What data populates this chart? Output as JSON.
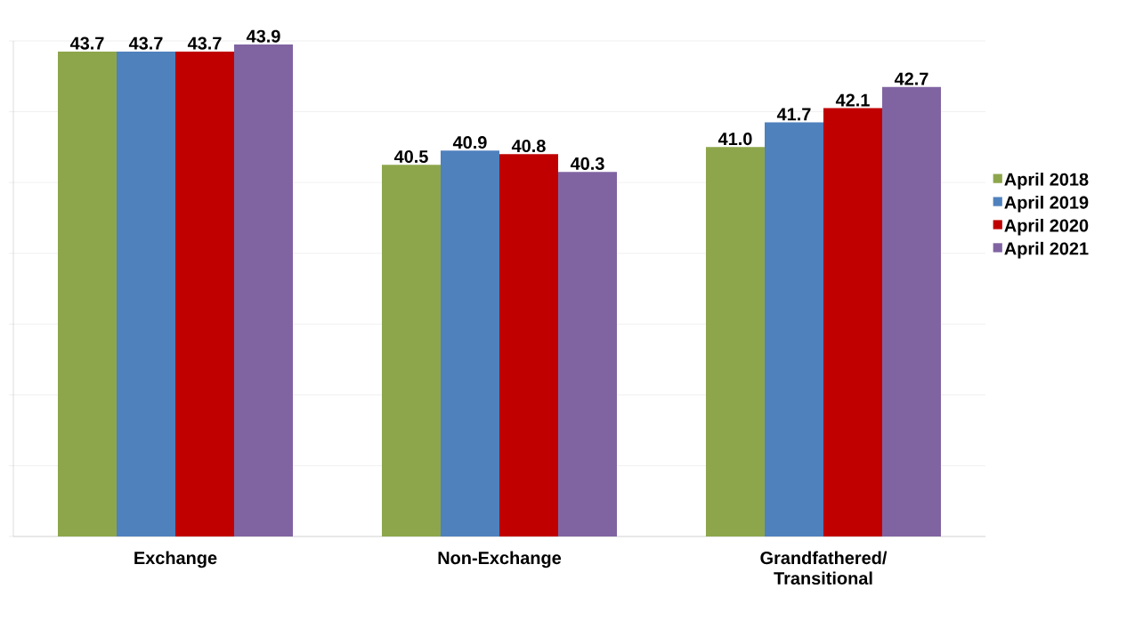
{
  "chart_data": {
    "type": "bar",
    "categories": [
      "Exchange",
      "Non-Exchange",
      "Grandfathered/ Transitional"
    ],
    "series": [
      {
        "name": "April 2018",
        "color": "#8da64b",
        "values": [
          43.7,
          40.5,
          41.0
        ],
        "value_labels": [
          "43.7",
          "40.5",
          "41.0"
        ]
      },
      {
        "name": "April 2019",
        "color": "#4f81bd",
        "values": [
          43.7,
          40.9,
          41.7
        ],
        "value_labels": [
          "43.7",
          "40.9",
          "41.7"
        ]
      },
      {
        "name": "April 2020",
        "color": "#c00000",
        "values": [
          43.7,
          40.8,
          42.1
        ],
        "value_labels": [
          "43.7",
          "40.8",
          "42.1"
        ]
      },
      {
        "name": "April 2021",
        "color": "#8064a2",
        "values": [
          43.9,
          40.3,
          42.7
        ],
        "value_labels": [
          "43.9",
          "40.3",
          "42.7"
        ]
      }
    ],
    "ylim": [
      30,
      44
    ],
    "yticks": [
      {
        "value": 30,
        "label": null
      },
      {
        "value": 32,
        "label": null
      },
      {
        "value": 34,
        "label": null
      },
      {
        "value": 36,
        "label": null
      },
      {
        "value": 38,
        "label": null
      },
      {
        "value": 40,
        "label": null
      },
      {
        "value": 42,
        "label": null
      },
      {
        "value": 44,
        "label": null
      }
    ],
    "tick_labels": "x",
    "grid": "y",
    "legend": "right"
  }
}
